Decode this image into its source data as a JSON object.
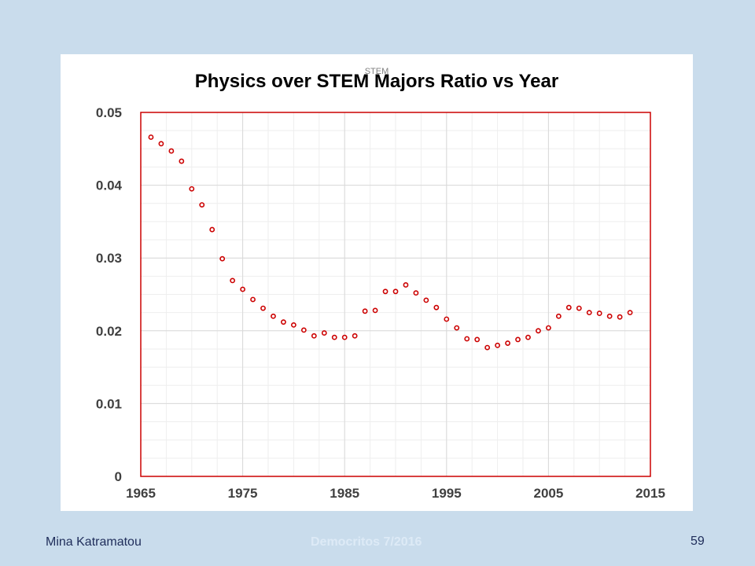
{
  "slide": {
    "footer_left": "Mina Katramatou",
    "footer_center": "Democritos 7/2016",
    "page_number": "59"
  },
  "colors": {
    "background": "#c9dcec",
    "panel": "#ffffff",
    "plot_border": "#cc0000",
    "marker": "#cc0000",
    "grid_major": "#d9d9d9",
    "grid_minor": "#eeeeee"
  },
  "chart_data": {
    "type": "scatter",
    "title": "Physics over STEM Majors Ratio vs Year",
    "superscript_note": "STEM",
    "xlabel": "",
    "ylabel": "",
    "xlim": [
      1965,
      2015
    ],
    "ylim": [
      0,
      0.05
    ],
    "x_ticks": [
      "1965",
      "1975",
      "1985",
      "1995",
      "2005",
      "2015"
    ],
    "y_ticks": [
      "0",
      "0.01",
      "0.02",
      "0.03",
      "0.04",
      "0.05"
    ],
    "grid": "major and minor",
    "legend": "none",
    "marker": "hollow circle",
    "series": [
      {
        "x": [
          1966,
          1967,
          1968,
          1969,
          1970,
          1971,
          1972,
          1973,
          1974,
          1975,
          1976,
          1977,
          1978,
          1979,
          1980,
          1981,
          1982,
          1983,
          1984,
          1985,
          1986,
          1987,
          1988,
          1989,
          1990,
          1991,
          1992,
          1993,
          1994,
          1995,
          1996,
          1997,
          1998,
          1999,
          2000,
          2001,
          2002,
          2003,
          2004,
          2005,
          2006,
          2007,
          2008,
          2009,
          2010,
          2011,
          2012,
          2013
        ],
        "y": [
          0.0466,
          0.0457,
          0.0447,
          0.0433,
          0.0395,
          0.0373,
          0.0339,
          0.0299,
          0.0269,
          0.0257,
          0.0243,
          0.0231,
          0.022,
          0.0212,
          0.0208,
          0.0201,
          0.0193,
          0.0197,
          0.0191,
          0.0191,
          0.0193,
          0.0227,
          0.0228,
          0.0254,
          0.0254,
          0.0263,
          0.0252,
          0.0242,
          0.0232,
          0.0216,
          0.0204,
          0.0189,
          0.0188,
          0.0177,
          0.018,
          0.0183,
          0.0188,
          0.0191,
          0.02,
          0.0204,
          0.022,
          0.0232,
          0.0231,
          0.0225,
          0.0224,
          0.022,
          0.0219,
          0.0225
        ]
      }
    ]
  }
}
